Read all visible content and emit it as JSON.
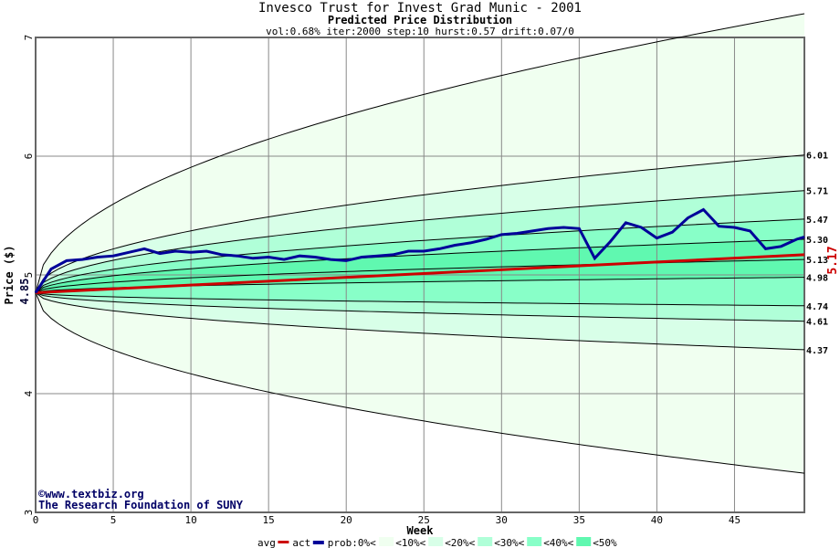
{
  "chart_data": {
    "type": "line",
    "title": "Invesco Trust for Invest Grad Munic - 2001",
    "subtitle": "Predicted Price Distribution",
    "params": "vol:0.68% iter:2000 step:10 hurst:0.57 drift:0.07/0",
    "xlabel": "Week",
    "ylabel": "Price ($)",
    "xlim": [
      0,
      49.5
    ],
    "ylim": [
      3,
      7
    ],
    "xticks": [
      0,
      5,
      10,
      15,
      20,
      25,
      30,
      35,
      40,
      45
    ],
    "yticks": [
      3,
      4,
      5,
      6,
      7
    ],
    "start_price": 4.85,
    "start_label": "4.85",
    "final_avg": 5.17,
    "final_avg_label": "5.17",
    "band_end_labels": [
      "6.01",
      "5.71",
      "5.47",
      "5.30",
      "5.13",
      "4.98",
      "4.74",
      "4.61",
      "4.37"
    ],
    "outer_end": {
      "upper": 7.2,
      "lower": 3.33
    },
    "series": [
      {
        "name": "act",
        "color": "#000099",
        "values": [
          4.85,
          5.05,
          5.12,
          5.13,
          5.15,
          5.16,
          5.19,
          5.22,
          5.18,
          5.2,
          5.19,
          5.2,
          5.17,
          5.16,
          5.14,
          5.15,
          5.13,
          5.16,
          5.15,
          5.13,
          5.12,
          5.15,
          5.16,
          5.17,
          5.2,
          5.2,
          5.22,
          5.25,
          5.27,
          5.3,
          5.34,
          5.35,
          5.37,
          5.39,
          5.4,
          5.39,
          5.14,
          5.28,
          5.44,
          5.4,
          5.31,
          5.36,
          5.48,
          5.55,
          5.41,
          5.4,
          5.37,
          5.22,
          5.24,
          5.3,
          5.32
        ]
      },
      {
        "name": "avg",
        "color": "#cc0000",
        "values": [
          4.85,
          5.17
        ]
      }
    ],
    "legend": {
      "avg": "avg",
      "act": "act",
      "prob": "prob:0%<",
      "bands": [
        "<10%<",
        "<20%<",
        "<30%<",
        "<40%<",
        "<50%"
      ],
      "colors": [
        "#f0fff0",
        "#d8ffe8",
        "#b0ffd8",
        "#88ffc8",
        "#60f8b0"
      ]
    },
    "watermark": [
      "©www.textbiz.org",
      "The Research Foundation of SUNY"
    ]
  }
}
